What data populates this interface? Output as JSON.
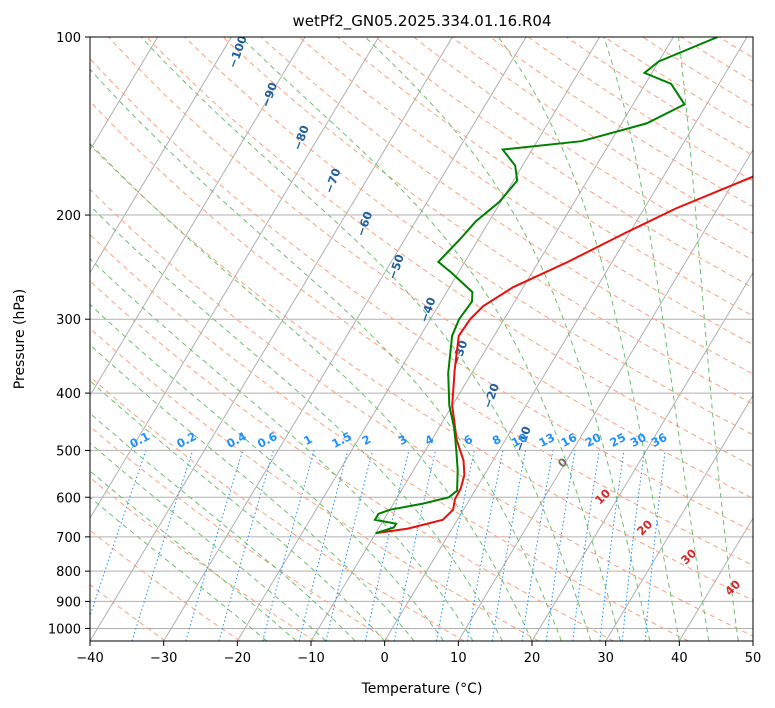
{
  "chart_data": {
    "type": "line",
    "title": "wetPf2_GN05.2025.334.01.16.R04",
    "xlabel": "Temperature (°C)",
    "ylabel": "Pressure (hPa)",
    "xlim": [
      -40,
      50
    ],
    "ylim": [
      1050,
      100
    ],
    "x_ticks": [
      "−40",
      "−30",
      "−20",
      "−10",
      "0",
      "10",
      "20",
      "30",
      "40",
      "50"
    ],
    "y_ticks": [
      "100",
      "200",
      "300",
      "400",
      "500",
      "600",
      "700",
      "800",
      "900",
      "1000"
    ],
    "isotherm_skew": true,
    "grid": true,
    "series": [
      {
        "name": "Temperature",
        "color": "#e8100c",
        "points": [
          [
            -10,
            690
          ],
          [
            -6,
            678
          ],
          [
            -2,
            655
          ],
          [
            -1.4,
            630
          ],
          [
            -2,
            605
          ],
          [
            -2.1,
            580
          ],
          [
            -2.7,
            550
          ],
          [
            -4,
            520
          ],
          [
            -6.6,
            480
          ],
          [
            -10,
            420
          ],
          [
            -12.6,
            365
          ],
          [
            -14.8,
            320
          ],
          [
            -14.6,
            300
          ],
          [
            -13.9,
            285
          ],
          [
            -11.4,
            265
          ],
          [
            -6,
            240
          ],
          [
            -0.7,
            215
          ],
          [
            4.3,
            195
          ],
          [
            13,
            170
          ],
          [
            18.9,
            155
          ],
          [
            21.2,
            145
          ],
          [
            23.5,
            140
          ],
          [
            29.5,
            125
          ],
          [
            36,
            112
          ],
          [
            40.2,
            100
          ]
        ]
      },
      {
        "name": "Dewpoint",
        "color": "#008000",
        "points": [
          [
            -10,
            690
          ],
          [
            -8,
            675
          ],
          [
            -8,
            665
          ],
          [
            -11.2,
            655
          ],
          [
            -11.2,
            640
          ],
          [
            -10,
            630
          ],
          [
            -6,
            615
          ],
          [
            -3,
            600
          ],
          [
            -2.4,
            585
          ],
          [
            -4,
            540
          ],
          [
            -5.8,
            500
          ],
          [
            -7.8,
            460
          ],
          [
            -10.4,
            420
          ],
          [
            -13.2,
            370
          ],
          [
            -15.7,
            320
          ],
          [
            -16.1,
            300
          ],
          [
            -15.8,
            280
          ],
          [
            -16.5,
            270
          ],
          [
            -21,
            250
          ],
          [
            -23.6,
            240
          ],
          [
            -22.5,
            220
          ],
          [
            -21.8,
            205
          ],
          [
            -20.2,
            190
          ],
          [
            -19.5,
            175
          ],
          [
            -21,
            165
          ],
          [
            -24,
            155
          ],
          [
            -14,
            150
          ],
          [
            -6.6,
            140
          ],
          [
            -3,
            130
          ],
          [
            -6.5,
            120
          ],
          [
            -11,
            115
          ],
          [
            -10,
            110
          ],
          [
            -4,
            100
          ]
        ]
      }
    ],
    "dry_adiabat_labels": [
      "−100",
      "−90",
      "−80",
      "−70",
      "−60",
      "−50",
      "−40",
      "−30",
      "−20",
      "−10"
    ],
    "mixing_ratio_labels": [
      "0.1",
      "0.2",
      "0.4",
      "0.6",
      "1",
      "1.5",
      "2",
      "3",
      "4",
      "6",
      "8",
      "10",
      "13",
      "16",
      "20",
      "25",
      "30",
      "36"
    ],
    "moist_adiabat_labels": [
      "0",
      "10",
      "20",
      "30",
      "40"
    ],
    "colors": {
      "temperature": "#e8100c",
      "dewpoint": "#008000",
      "dry_adiabat": "#ffa07a",
      "moist_adiabat": "#6fbf6f",
      "mixing_ratio": "#1e90ff",
      "isotherm": "#b0b0b0",
      "label_dry": "#1f5f9f",
      "label_mixing": "#1e90ff",
      "label_moist_zero": "#707070",
      "label_moist": "#d62728"
    }
  }
}
